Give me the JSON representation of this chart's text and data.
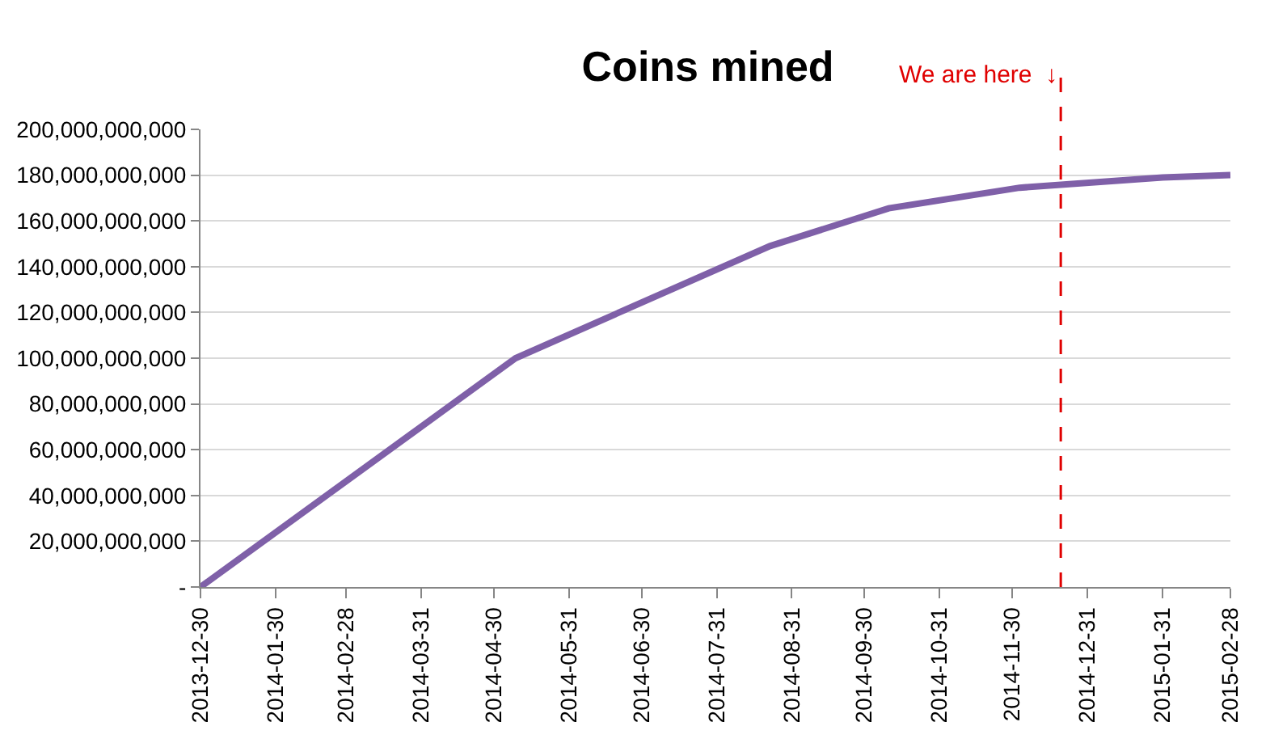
{
  "chart_data": {
    "type": "line",
    "title": "Coins mined",
    "x": [
      "2013-12-30",
      "2014-05-09",
      "2014-08-22",
      "2014-10-10",
      "2014-12-03",
      "2015-01-31",
      "2015-02-28"
    ],
    "series": [
      {
        "color": "#7f60a8",
        "values": [
          0,
          100000000000,
          149000000000,
          165500000000,
          174500000000,
          179000000000,
          180000000000
        ]
      }
    ],
    "xlim": [
      "2013-12-30",
      "2015-02-28"
    ],
    "xticks": [
      "2013-12-30",
      "2014-01-30",
      "2014-02-28",
      "2014-03-31",
      "2014-04-30",
      "2014-05-31",
      "2014-06-30",
      "2014-07-31",
      "2014-08-31",
      "2014-09-30",
      "2014-10-31",
      "2014-11-30",
      "2014-12-31",
      "2015-01-31",
      "2015-02-28"
    ],
    "ylim": [
      0,
      200000000000
    ],
    "yticks": [
      {
        "value": 0,
        "label": "-"
      },
      {
        "value": 20000000000,
        "label": "20,000,000,000"
      },
      {
        "value": 40000000000,
        "label": "40,000,000,000"
      },
      {
        "value": 60000000000,
        "label": "60,000,000,000"
      },
      {
        "value": 80000000000,
        "label": "80,000,000,000"
      },
      {
        "value": 100000000000,
        "label": "100,000,000,000"
      },
      {
        "value": 120000000000,
        "label": "120,000,000,000"
      },
      {
        "value": 140000000000,
        "label": "140,000,000,000"
      },
      {
        "value": 160000000000,
        "label": "160,000,000,000"
      },
      {
        "value": 180000000000,
        "label": "180,000,000,000"
      },
      {
        "value": 200000000000,
        "label": "200,000,000,000"
      }
    ],
    "ref_lines": [
      {
        "axis": "x",
        "value": "2014-12-20",
        "label": "We are here  ↓",
        "color": "#e00000",
        "line_style": "dashed"
      }
    ],
    "grid": "y",
    "marker": "none",
    "line_style": "solid"
  }
}
